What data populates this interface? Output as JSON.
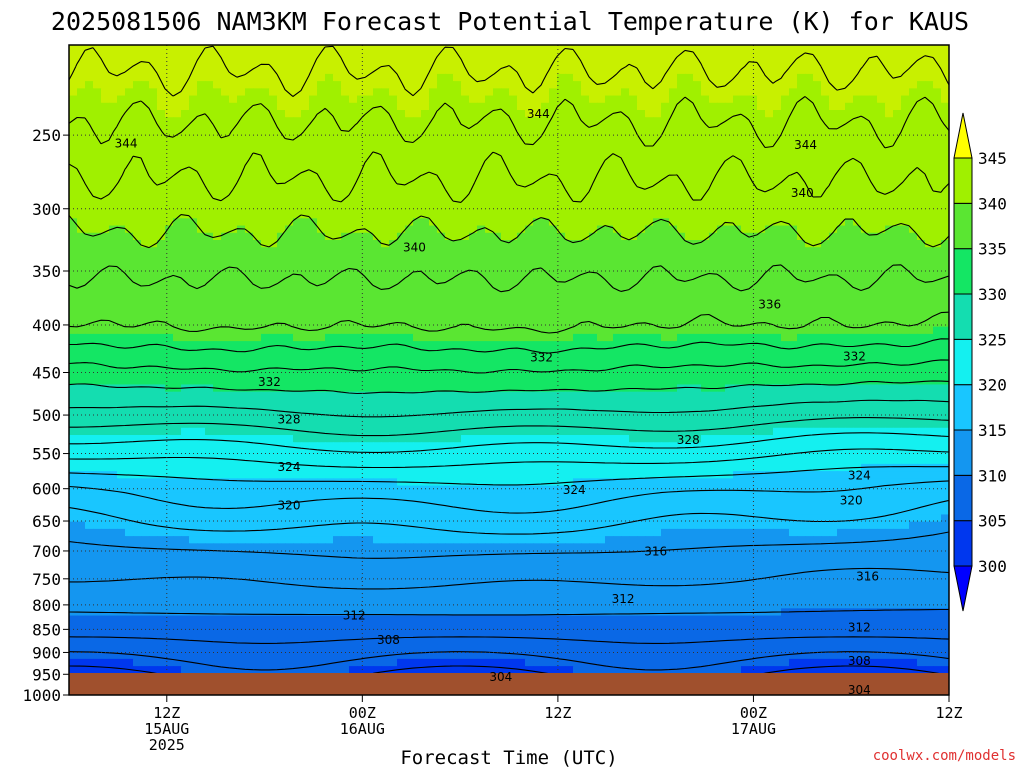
{
  "title": "2025081506 NAM3KM Forecast Potential Temperature (K) for KAUS",
  "credit": "coolwx.com/models",
  "chart_data": {
    "type": "heatmap",
    "title": "2025081506 NAM3KM Forecast Potential Temperature (K) for KAUS",
    "xlabel": "Forecast Time (UTC)",
    "ylabel": "",
    "y_axis": {
      "scale": "log",
      "reversed": true,
      "range": [
        1000,
        200
      ]
    },
    "y_ticks": [
      250,
      300,
      350,
      400,
      450,
      500,
      550,
      600,
      650,
      700,
      750,
      800,
      850,
      900,
      950,
      1000
    ],
    "x_range_hours": [
      6,
      60
    ],
    "x_ticks": [
      {
        "hour": 12,
        "lines": [
          "12Z",
          "15AUG",
          "2025"
        ]
      },
      {
        "hour": 24,
        "lines": [
          "00Z",
          "16AUG"
        ]
      },
      {
        "hour": 36,
        "lines": [
          "12Z"
        ]
      },
      {
        "hour": 48,
        "lines": [
          "00Z",
          "17AUG"
        ]
      },
      {
        "hour": 60,
        "lines": [
          "12Z"
        ]
      }
    ],
    "grid": true,
    "colorbar": {
      "levels": [
        300,
        305,
        310,
        315,
        320,
        325,
        330,
        335,
        340,
        345
      ],
      "colors": [
        "#0000ff",
        "#0037ee",
        "#0a68e6",
        "#1496f0",
        "#19c6ff",
        "#14f0f0",
        "#14ddb0",
        "#14e664",
        "#5ae632",
        "#a0f000",
        "#c8f000",
        "#ffff00"
      ]
    },
    "contour_interval": 2,
    "contour_labels": [
      {
        "hour": 9.5,
        "p": 255,
        "v": 344
      },
      {
        "hour": 34.8,
        "p": 237,
        "v": 344
      },
      {
        "hour": 51.2,
        "p": 256,
        "v": 344
      },
      {
        "hour": 51.0,
        "p": 288,
        "v": 340
      },
      {
        "hour": 27.2,
        "p": 330,
        "v": 340
      },
      {
        "hour": 49.0,
        "p": 380,
        "v": 336
      },
      {
        "hour": 35.0,
        "p": 433,
        "v": 332
      },
      {
        "hour": 54.2,
        "p": 432,
        "v": 332
      },
      {
        "hour": 18.3,
        "p": 460,
        "v": 332
      },
      {
        "hour": 19.5,
        "p": 505,
        "v": 328
      },
      {
        "hour": 44.0,
        "p": 531,
        "v": 328
      },
      {
        "hour": 19.5,
        "p": 568,
        "v": 324
      },
      {
        "hour": 37.0,
        "p": 601,
        "v": 324
      },
      {
        "hour": 54.5,
        "p": 580,
        "v": 324
      },
      {
        "hour": 19.5,
        "p": 625,
        "v": 320
      },
      {
        "hour": 54.0,
        "p": 617,
        "v": 320
      },
      {
        "hour": 42.0,
        "p": 700,
        "v": 316
      },
      {
        "hour": 55.0,
        "p": 745,
        "v": 316
      },
      {
        "hour": 40.0,
        "p": 787,
        "v": 312
      },
      {
        "hour": 23.5,
        "p": 820,
        "v": 312
      },
      {
        "hour": 54.5,
        "p": 845,
        "v": 312
      },
      {
        "hour": 25.6,
        "p": 872,
        "v": 308
      },
      {
        "hour": 54.5,
        "p": 918,
        "v": 308
      },
      {
        "hour": 32.5,
        "p": 955,
        "v": 304
      },
      {
        "hour": 54.5,
        "p": 987,
        "v": 304
      }
    ],
    "profile_reference": {
      "pressure": [
        1000,
        925,
        850,
        700,
        600,
        500,
        400,
        300,
        250,
        200
      ],
      "theta": [
        301.5,
        305.5,
        309,
        313.5,
        318,
        327,
        336,
        341,
        343.5,
        347
      ]
    }
  }
}
